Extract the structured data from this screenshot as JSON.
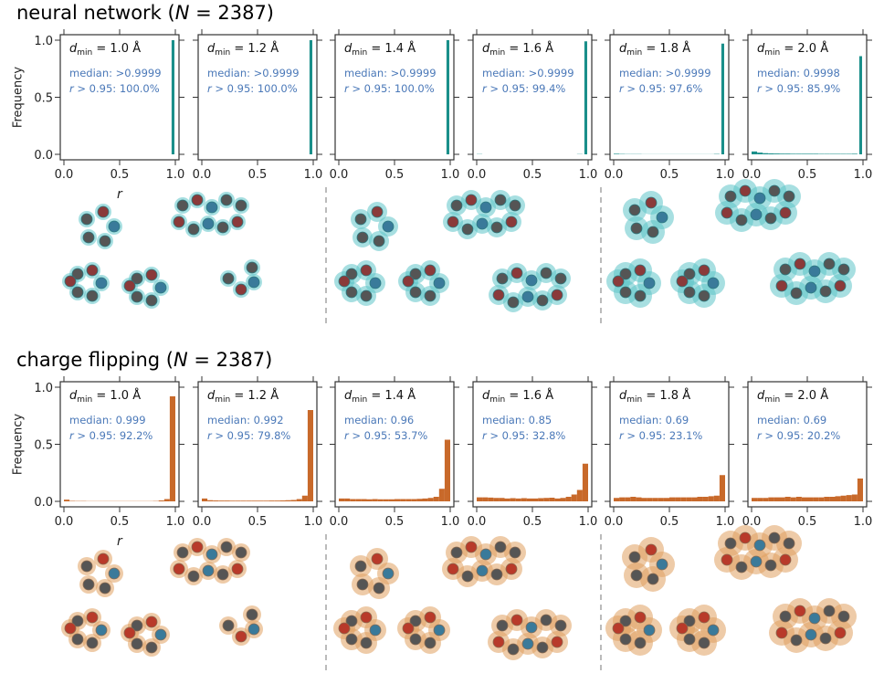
{
  "sections": [
    {
      "title_prefix": "neural network (",
      "title_var": "N",
      "title_suffix": " = 2387)",
      "color": "#1a8f8a",
      "molecule_mesh_color": "#5fc4c8"
    },
    {
      "title_prefix": "charge flipping (",
      "title_var": "N",
      "title_suffix": " = 2387)",
      "color": "#c8692a",
      "molecule_mesh_color": "#e0a060"
    }
  ],
  "chart_data": [
    {
      "type": "bar",
      "group": "neural network",
      "ylabel": "Frequency",
      "xlabel": "r",
      "xlim": [
        0,
        1
      ],
      "ylim": [
        0,
        1
      ],
      "xticks": [
        "0.0",
        "0.5",
        "1.0"
      ],
      "yticks": [
        "0.0",
        "0.5",
        "1.0"
      ],
      "bin_width": 0.05,
      "panels": [
        {
          "dmin": "1.0 Å",
          "median": "median: >0.9999",
          "frac": "> 0.95: 100.0%",
          "values": [
            0,
            0,
            0,
            0,
            0,
            0,
            0,
            0,
            0,
            0,
            0,
            0,
            0,
            0,
            0,
            0,
            0,
            0,
            0,
            1.0
          ]
        },
        {
          "dmin": "1.2 Å",
          "median": "median: >0.9999",
          "frac": "> 0.95: 100.0%",
          "values": [
            0,
            0,
            0,
            0,
            0,
            0,
            0,
            0,
            0,
            0,
            0,
            0,
            0,
            0,
            0,
            0,
            0,
            0,
            0,
            1.0
          ]
        },
        {
          "dmin": "1.4 Å",
          "median": "median: >0.9999",
          "frac": "> 0.95: 100.0%",
          "values": [
            0,
            0,
            0,
            0,
            0,
            0,
            0,
            0,
            0,
            0,
            0,
            0,
            0,
            0,
            0,
            0,
            0,
            0,
            0,
            1.0
          ]
        },
        {
          "dmin": "1.6 Å",
          "median": "median: >0.9999",
          "frac": "> 0.95: 99.4%",
          "values": [
            0.002,
            0,
            0,
            0,
            0,
            0,
            0,
            0,
            0,
            0,
            0,
            0,
            0,
            0,
            0,
            0,
            0,
            0,
            0.002,
            0.99
          ]
        },
        {
          "dmin": "1.8 Å",
          "median": "median: >0.9999",
          "frac": "> 0.95: 97.6%",
          "values": [
            0.005,
            0.003,
            0.002,
            0.002,
            0.002,
            0.001,
            0.001,
            0.001,
            0.001,
            0.001,
            0.001,
            0.001,
            0.001,
            0.001,
            0.001,
            0.001,
            0.001,
            0.001,
            0.003,
            0.97
          ]
        },
        {
          "dmin": "2.0 Å",
          "median": "median: 0.9998",
          "frac": "> 0.95: 85.9%",
          "values": [
            0.025,
            0.015,
            0.01,
            0.008,
            0.007,
            0.006,
            0.006,
            0.005,
            0.005,
            0.005,
            0.005,
            0.005,
            0.004,
            0.004,
            0.004,
            0.004,
            0.004,
            0.004,
            0.005,
            0.86
          ]
        }
      ]
    },
    {
      "type": "bar",
      "group": "charge flipping",
      "ylabel": "Frequency",
      "xlabel": "r",
      "xlim": [
        0,
        1
      ],
      "ylim": [
        0,
        1
      ],
      "xticks": [
        "0.0",
        "0.5",
        "1.0"
      ],
      "yticks": [
        "0.0",
        "0.5",
        "1.0"
      ],
      "bin_width": 0.05,
      "panels": [
        {
          "dmin": "1.0 Å",
          "median": "median: 0.999",
          "frac": "> 0.95: 92.2%",
          "values": [
            0.015,
            0.004,
            0.003,
            0.003,
            0.002,
            0.002,
            0.002,
            0.002,
            0.002,
            0.002,
            0.002,
            0.002,
            0.002,
            0.002,
            0.002,
            0.002,
            0.003,
            0.008,
            0.02,
            0.92
          ]
        },
        {
          "dmin": "1.2 Å",
          "median": "median: 0.992",
          "frac": "> 0.95: 79.8%",
          "values": [
            0.025,
            0.01,
            0.008,
            0.007,
            0.007,
            0.006,
            0.006,
            0.006,
            0.006,
            0.006,
            0.006,
            0.006,
            0.007,
            0.007,
            0.008,
            0.01,
            0.012,
            0.02,
            0.05,
            0.8
          ]
        },
        {
          "dmin": "1.4 Å",
          "median": "median: 0.96",
          "frac": "> 0.95: 53.7%",
          "values": [
            0.025,
            0.025,
            0.02,
            0.02,
            0.02,
            0.018,
            0.02,
            0.018,
            0.018,
            0.018,
            0.02,
            0.02,
            0.02,
            0.02,
            0.022,
            0.025,
            0.03,
            0.04,
            0.11,
            0.54
          ]
        },
        {
          "dmin": "1.6 Å",
          "median": "median: 0.85",
          "frac": "> 0.95: 32.8%",
          "values": [
            0.035,
            0.035,
            0.033,
            0.03,
            0.03,
            0.025,
            0.028,
            0.025,
            0.028,
            0.025,
            0.025,
            0.028,
            0.03,
            0.032,
            0.025,
            0.03,
            0.04,
            0.06,
            0.1,
            0.33
          ]
        },
        {
          "dmin": "1.8 Å",
          "median": "median: 0.69",
          "frac": "> 0.95: 23.1%",
          "values": [
            0.03,
            0.035,
            0.035,
            0.04,
            0.035,
            0.03,
            0.03,
            0.03,
            0.03,
            0.03,
            0.035,
            0.035,
            0.035,
            0.035,
            0.035,
            0.04,
            0.04,
            0.045,
            0.05,
            0.23
          ]
        },
        {
          "dmin": "2.0 Å",
          "median": "median: 0.69",
          "frac": "> 0.95: 20.2%",
          "values": [
            0.03,
            0.03,
            0.03,
            0.035,
            0.035,
            0.035,
            0.04,
            0.035,
            0.04,
            0.035,
            0.035,
            0.035,
            0.035,
            0.04,
            0.04,
            0.045,
            0.05,
            0.055,
            0.06,
            0.2
          ]
        }
      ]
    }
  ]
}
